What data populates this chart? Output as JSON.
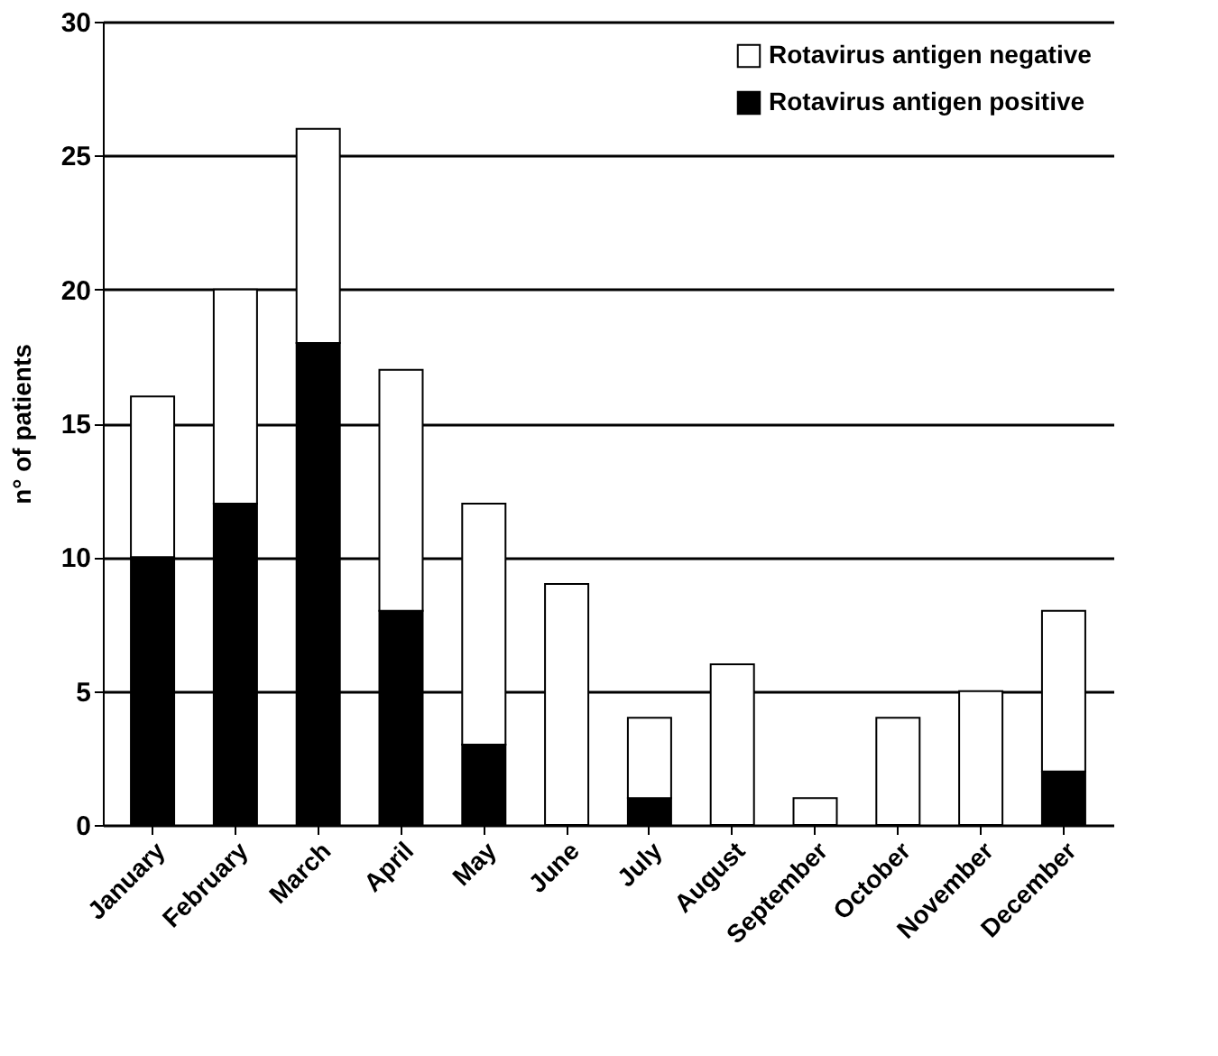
{
  "chart_data": {
    "type": "bar",
    "stacked": true,
    "ylabel": "n° of patients",
    "categories": [
      "January",
      "February",
      "March",
      "April",
      "May",
      "June",
      "July",
      "August",
      "September",
      "October",
      "November",
      "December"
    ],
    "series": [
      {
        "name": "Rotavirus antigen positive",
        "color": "#000000",
        "values": [
          10,
          12,
          18,
          8,
          3,
          0,
          1,
          0,
          0,
          0,
          0,
          2
        ]
      },
      {
        "name": "Rotavirus antigen negative",
        "color": "#ffffff",
        "values": [
          6,
          8,
          8,
          9,
          9,
          9,
          3,
          6,
          1,
          4,
          5,
          6
        ]
      }
    ],
    "ylim": [
      0,
      30
    ],
    "yticks": [
      0,
      5,
      10,
      15,
      20,
      25,
      30
    ],
    "grid": "y",
    "legend": "top right"
  }
}
